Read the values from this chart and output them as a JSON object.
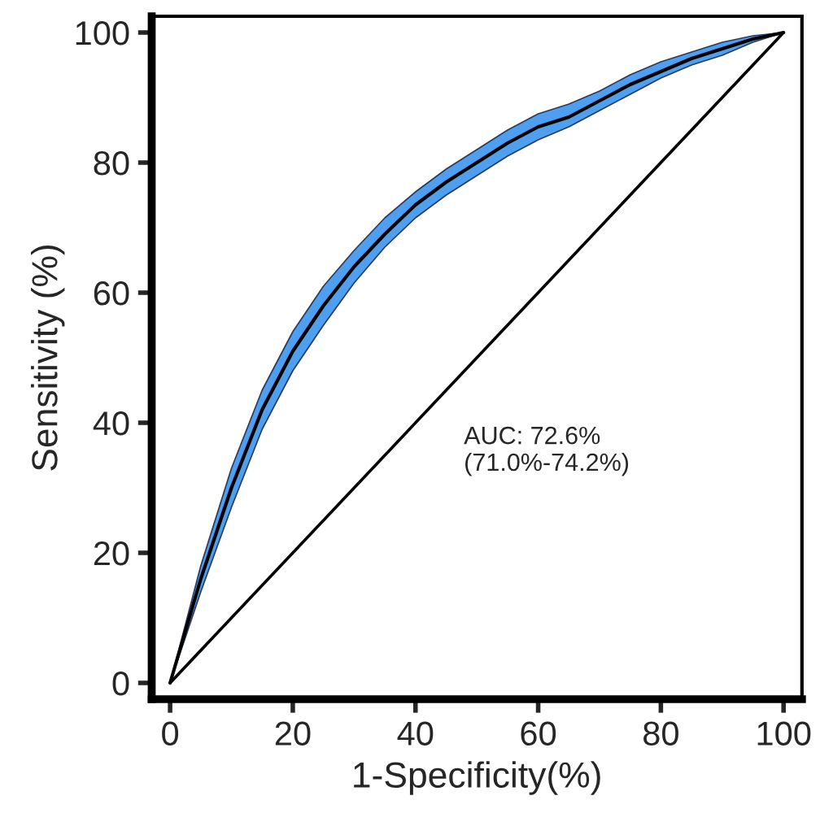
{
  "chart_data": {
    "type": "line",
    "xlabel": "1-Specificity(%)",
    "ylabel": "Sensitivity (%)",
    "x": [
      0,
      5,
      10,
      15,
      20,
      25,
      30,
      35,
      40,
      45,
      50,
      55,
      60,
      65,
      70,
      75,
      80,
      85,
      90,
      95,
      100
    ],
    "series": [
      {
        "color": "#000000",
        "values": [
          0,
          16,
          30,
          42,
          51,
          58,
          64,
          69,
          73.5,
          77,
          80,
          83,
          85.5,
          87,
          89.5,
          92,
          94,
          96,
          97.5,
          99,
          100
        ],
        "lower": [
          0,
          14,
          27,
          39,
          48,
          55,
          61.5,
          67,
          71.5,
          75,
          78,
          81,
          83.5,
          85.5,
          88,
          90.5,
          93,
          95,
          96.5,
          98.5,
          100
        ],
        "upper": [
          0,
          18,
          33,
          45,
          54,
          61,
          66.5,
          71.5,
          75.5,
          79,
          82,
          85,
          87.5,
          89,
          91,
          93.5,
          95.5,
          97,
          98.5,
          99.5,
          100
        ]
      },
      {
        "color": "#000000",
        "x": [
          0,
          100
        ],
        "values": [
          0,
          100
        ]
      }
    ],
    "annotations": [
      "AUC: 72.6%\n(71.0%-74.2%)"
    ],
    "xlim": [
      -3,
      103
    ],
    "ylim": [
      -2.5,
      102.5
    ],
    "xticks": [
      0,
      20,
      40,
      60,
      80,
      100
    ],
    "yticks": [
      0,
      20,
      40,
      60,
      80,
      100
    ],
    "grid": false,
    "legend": false,
    "marker": "none",
    "line_style": "solid"
  }
}
